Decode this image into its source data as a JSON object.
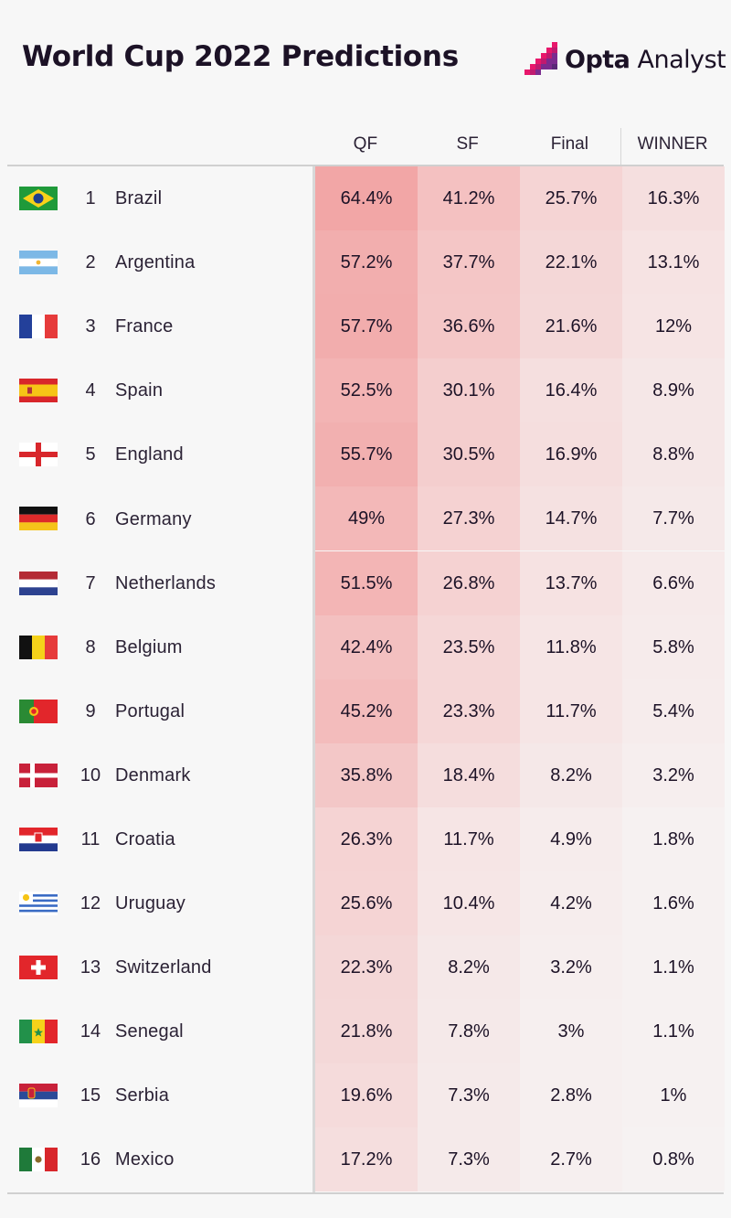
{
  "title": "World Cup 2022 Predictions",
  "logo": {
    "brand": "Opta",
    "product": " Analyst",
    "accent": "#e8176b",
    "accent2": "#7b2b8f"
  },
  "chart_data": {
    "type": "table",
    "columns": [
      "QF",
      "SF",
      "Final",
      "WINNER"
    ],
    "heat_color": "#ee6a6a",
    "rows": [
      {
        "rank": "1",
        "team": "Brazil",
        "flag": "brazil-flag-icon",
        "values": [
          "64.4%",
          "41.2%",
          "25.7%",
          "16.3%"
        ]
      },
      {
        "rank": "2",
        "team": "Argentina",
        "flag": "argentina-flag-icon",
        "values": [
          "57.2%",
          "37.7%",
          "22.1%",
          "13.1%"
        ]
      },
      {
        "rank": "3",
        "team": "France",
        "flag": "france-flag-icon",
        "values": [
          "57.7%",
          "36.6%",
          "21.6%",
          "12%"
        ]
      },
      {
        "rank": "4",
        "team": "Spain",
        "flag": "spain-flag-icon",
        "values": [
          "52.5%",
          "30.1%",
          "16.4%",
          "8.9%"
        ]
      },
      {
        "rank": "5",
        "team": "England",
        "flag": "england-flag-icon",
        "values": [
          "55.7%",
          "30.5%",
          "16.9%",
          "8.8%"
        ]
      },
      {
        "rank": "6",
        "team": "Germany",
        "flag": "germany-flag-icon",
        "values": [
          "49%",
          "27.3%",
          "14.7%",
          "7.7%"
        ]
      },
      {
        "rank": "7",
        "team": "Netherlands",
        "flag": "netherlands-flag-icon",
        "values": [
          "51.5%",
          "26.8%",
          "13.7%",
          "6.6%"
        ]
      },
      {
        "rank": "8",
        "team": "Belgium",
        "flag": "belgium-flag-icon",
        "values": [
          "42.4%",
          "23.5%",
          "11.8%",
          "5.8%"
        ]
      },
      {
        "rank": "9",
        "team": "Portugal",
        "flag": "portugal-flag-icon",
        "values": [
          "45.2%",
          "23.3%",
          "11.7%",
          "5.4%"
        ]
      },
      {
        "rank": "10",
        "team": "Denmark",
        "flag": "denmark-flag-icon",
        "values": [
          "35.8%",
          "18.4%",
          "8.2%",
          "3.2%"
        ]
      },
      {
        "rank": "11",
        "team": "Croatia",
        "flag": "croatia-flag-icon",
        "values": [
          "26.3%",
          "11.7%",
          "4.9%",
          "1.8%"
        ]
      },
      {
        "rank": "12",
        "team": "Uruguay",
        "flag": "uruguay-flag-icon",
        "values": [
          "25.6%",
          "10.4%",
          "4.2%",
          "1.6%"
        ]
      },
      {
        "rank": "13",
        "team": "Switzerland",
        "flag": "switzerland-flag-icon",
        "values": [
          "22.3%",
          "8.2%",
          "3.2%",
          "1.1%"
        ]
      },
      {
        "rank": "14",
        "team": "Senegal",
        "flag": "senegal-flag-icon",
        "values": [
          "21.8%",
          "7.8%",
          "3%",
          "1.1%"
        ]
      },
      {
        "rank": "15",
        "team": "Serbia",
        "flag": "serbia-flag-icon",
        "values": [
          "19.6%",
          "7.3%",
          "2.8%",
          "1%"
        ]
      },
      {
        "rank": "16",
        "team": "Mexico",
        "flag": "mexico-flag-icon",
        "values": [
          "17.2%",
          "7.3%",
          "2.7%",
          "0.8%"
        ]
      }
    ]
  }
}
